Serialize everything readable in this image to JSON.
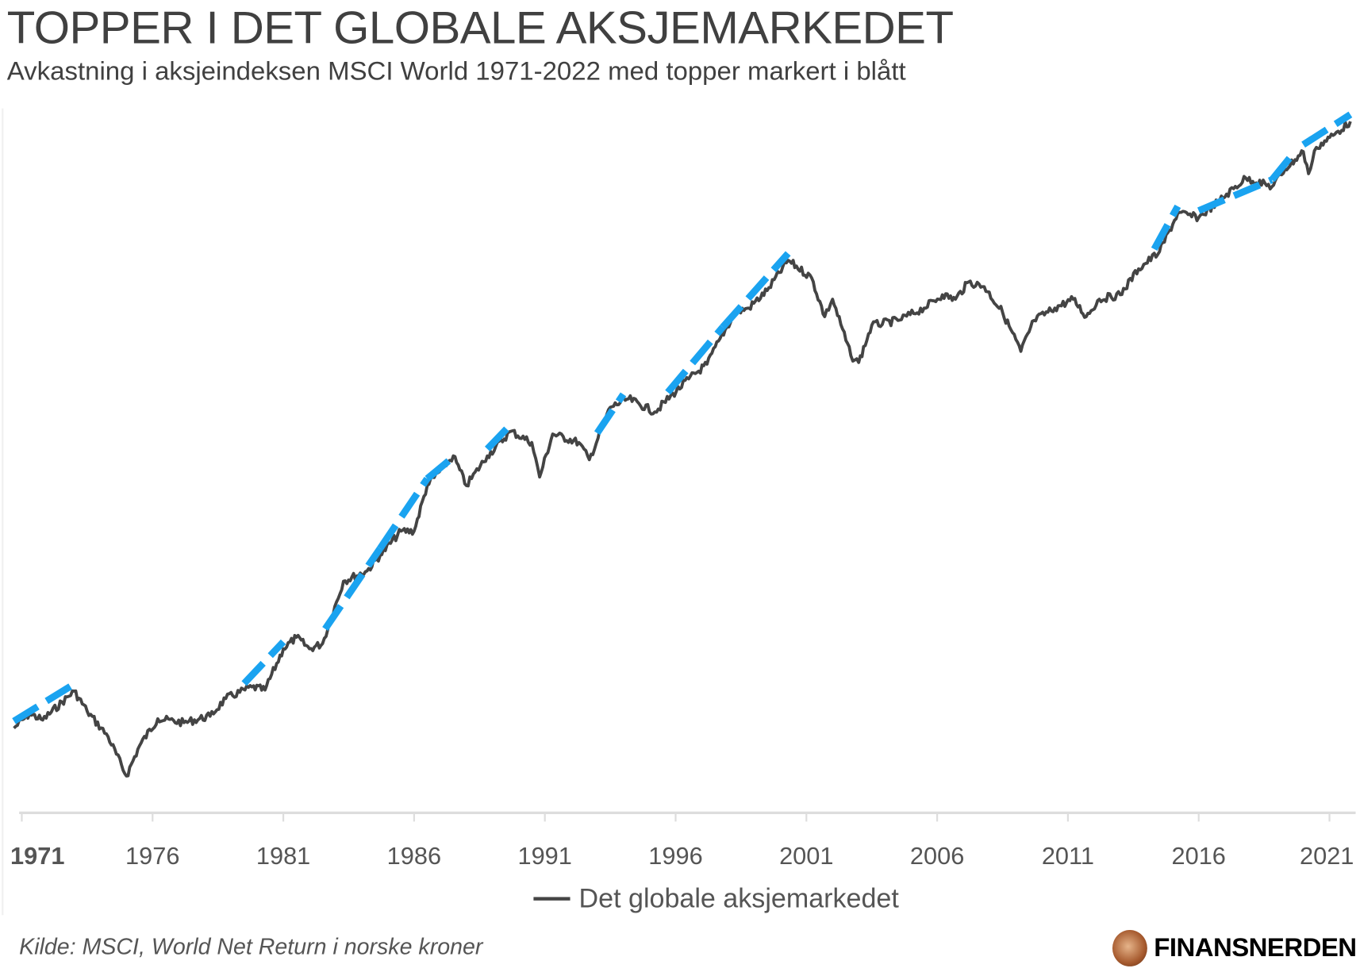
{
  "header": {
    "title": "TOPPER I DET GLOBALE AKSJEMARKEDET",
    "subtitle": "Avkastning i aksjeindeksen MSCI World 1971-2022 med topper markert i blått"
  },
  "chart_data": {
    "type": "line",
    "title": "TOPPER I DET GLOBALE AKSJEMARKEDET",
    "xlabel": "",
    "ylabel": "",
    "y_scale": "log",
    "y_note": "relative index (1971 = 100), approximate, no y axis shown",
    "x_ticks": [
      "1971",
      "1976",
      "1981",
      "1986",
      "1991",
      "1996",
      "2001",
      "2006",
      "2011",
      "2016",
      "2021"
    ],
    "grid": false,
    "legend_position": "bottom-center",
    "series": [
      {
        "name": "Det globale aksjemarkedet",
        "color": "#444444",
        "points": [
          [
            1970.7,
            94
          ],
          [
            1971.3,
            105
          ],
          [
            1971.8,
            100
          ],
          [
            1973.0,
            125
          ],
          [
            1973.5,
            107
          ],
          [
            1974.3,
            88
          ],
          [
            1975.0,
            65
          ],
          [
            1975.5,
            82
          ],
          [
            1976.2,
            101
          ],
          [
            1977.2,
            98
          ],
          [
            1978.2,
            103
          ],
          [
            1978.8,
            118
          ],
          [
            1979.8,
            129
          ],
          [
            1980.3,
            126
          ],
          [
            1981.0,
            173
          ],
          [
            1981.5,
            189
          ],
          [
            1982.0,
            173
          ],
          [
            1982.5,
            180
          ],
          [
            1983.3,
            291
          ],
          [
            1984.2,
            315
          ],
          [
            1984.7,
            355
          ],
          [
            1985.5,
            428
          ],
          [
            1986.0,
            428
          ],
          [
            1986.5,
            607
          ],
          [
            1987.5,
            763
          ],
          [
            1988.0,
            607
          ],
          [
            1988.8,
            763
          ],
          [
            1989.7,
            922
          ],
          [
            1990.5,
            846
          ],
          [
            1990.8,
            649
          ],
          [
            1991.3,
            903
          ],
          [
            1992.3,
            846
          ],
          [
            1992.7,
            741
          ],
          [
            1993.5,
            1109
          ],
          [
            1994.2,
            1184
          ],
          [
            1995.2,
            1070
          ],
          [
            1996.5,
            1380
          ],
          [
            1997.2,
            1545
          ],
          [
            1997.7,
            1883
          ],
          [
            1998.3,
            2304
          ],
          [
            1998.8,
            2380
          ],
          [
            1999.5,
            2724
          ],
          [
            2000.3,
            3434
          ],
          [
            2001.2,
            3004
          ],
          [
            2001.7,
            2228
          ],
          [
            2002.0,
            2548
          ],
          [
            2002.7,
            1650
          ],
          [
            2003.0,
            1566
          ],
          [
            2003.5,
            2085
          ],
          [
            2004.5,
            2163
          ],
          [
            2005.5,
            2380
          ],
          [
            2006.2,
            2636
          ],
          [
            2006.7,
            2548
          ],
          [
            2007.2,
            2907
          ],
          [
            2007.8,
            2806
          ],
          [
            2008.5,
            2304
          ],
          [
            2009.2,
            1706
          ],
          [
            2009.7,
            2163
          ],
          [
            2010.5,
            2380
          ],
          [
            2011.2,
            2548
          ],
          [
            2011.7,
            2228
          ],
          [
            2012.2,
            2548
          ],
          [
            2013.0,
            2636
          ],
          [
            2013.7,
            3217
          ],
          [
            2014.5,
            3669
          ],
          [
            2015.2,
            4937
          ],
          [
            2016.0,
            4773
          ],
          [
            2016.8,
            5440
          ],
          [
            2017.8,
            6470
          ],
          [
            2018.8,
            6052
          ],
          [
            2019.3,
            6920
          ],
          [
            2020.0,
            7930
          ],
          [
            2020.2,
            6690
          ],
          [
            2020.5,
            8190
          ],
          [
            2021.2,
            9060
          ],
          [
            2021.8,
            10000
          ]
        ]
      },
      {
        "name": "Topper",
        "color": "#1aa3f0",
        "style": "dashed",
        "periods": [
          [
            1970.7,
            1973.0
          ],
          [
            1979.5,
            1981.0
          ],
          [
            1982.6,
            1984.7
          ],
          [
            1984.7,
            1986.5
          ],
          [
            1986.5,
            1987.6
          ],
          [
            1988.8,
            1989.7
          ],
          [
            1993.0,
            1994.0
          ],
          [
            1995.7,
            1997.8
          ],
          [
            1997.8,
            2000.3
          ],
          [
            2014.3,
            2015.2
          ],
          [
            2016.0,
            2018.8
          ],
          [
            2018.8,
            2019.5
          ],
          [
            2020.0,
            2021.8
          ]
        ]
      }
    ]
  },
  "legend": {
    "label": "Det globale aksjemarkedet"
  },
  "footer": {
    "source": "Kilde: MSCI, World Net Return i norske kroner",
    "brand": "FINANSNERDEN"
  }
}
